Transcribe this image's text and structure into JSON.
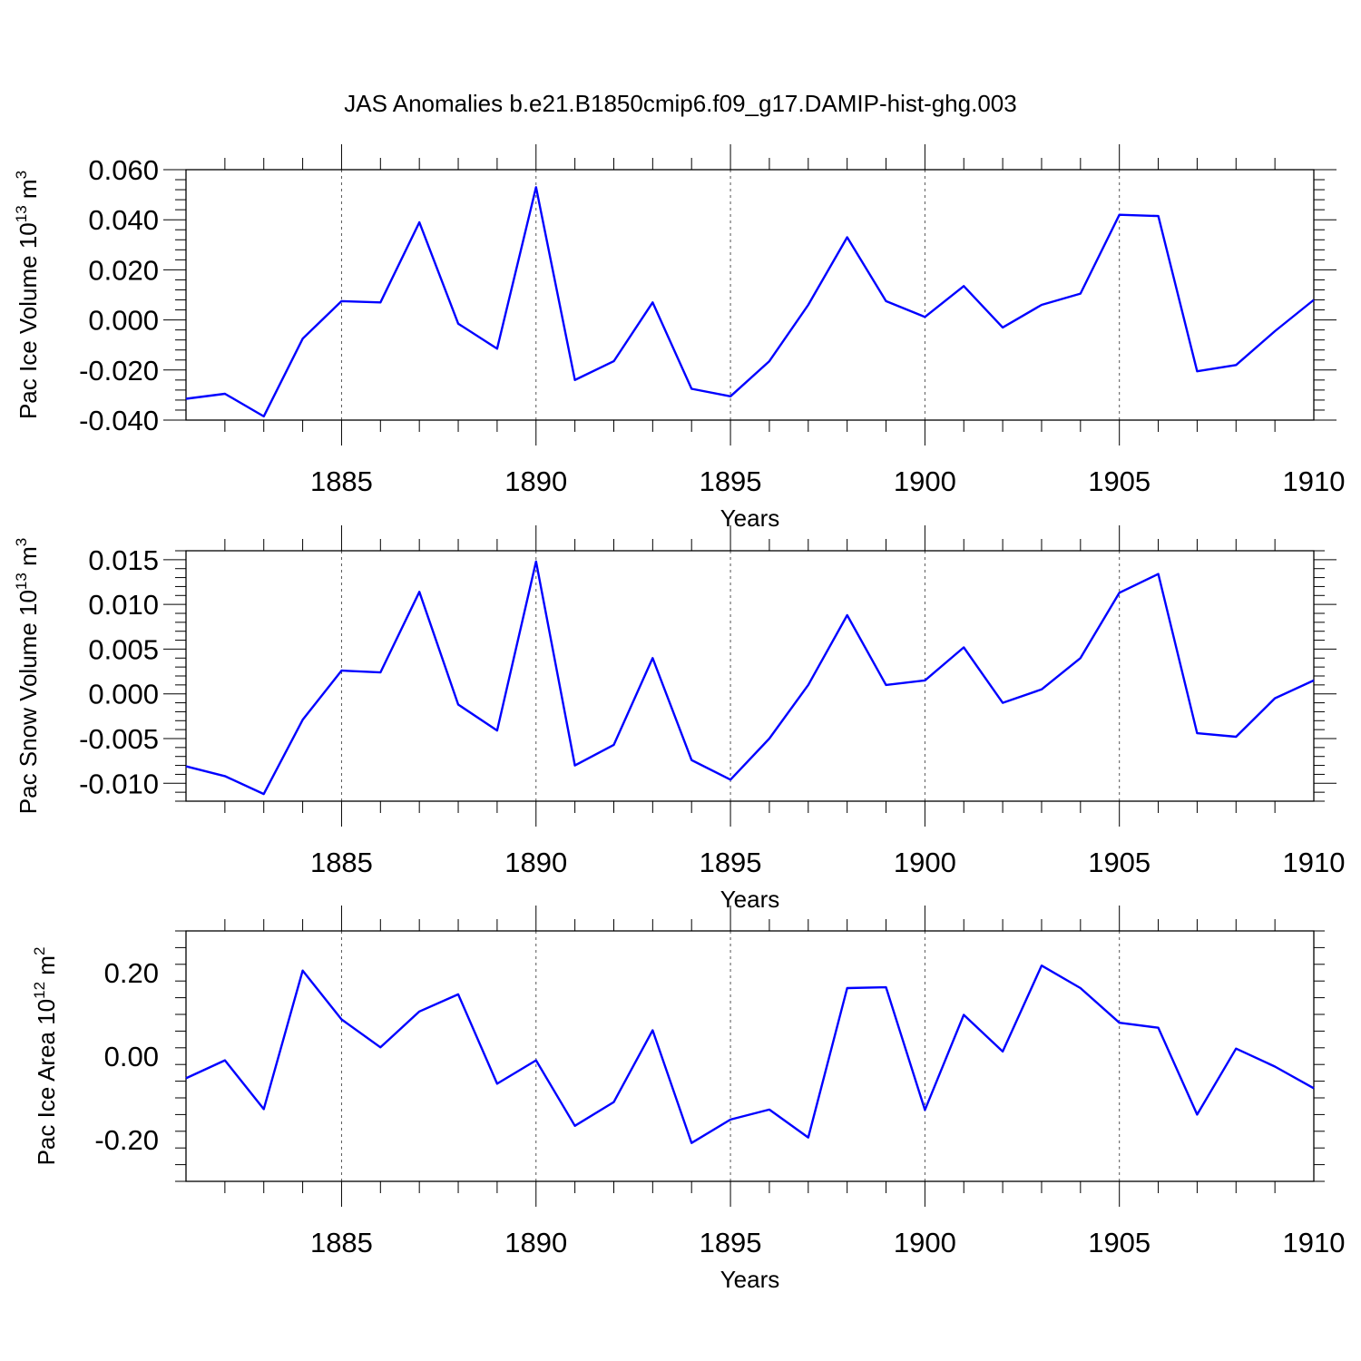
{
  "figure": {
    "title": "JAS Anomalies b.e21.B1850cmip6.f09_g17.DAMIP-hist-ghg.003",
    "line_color": "#0000ff"
  },
  "chart_data": [
    {
      "type": "line",
      "title": "",
      "xlabel": "Years",
      "ylabel_main": "Pac Ice Volume 10",
      "ylabel_sup": "13",
      "ylabel_unit": " m",
      "ylabel_unit_sup": "3",
      "xlim": [
        1881,
        1910
      ],
      "ylim": [
        -0.04,
        0.06
      ],
      "yticks": [
        -0.04,
        -0.02,
        0.0,
        0.02,
        0.04,
        0.06
      ],
      "ytick_labels": [
        "-0.040",
        "-0.020",
        "0.000",
        "0.020",
        "0.040",
        "0.060"
      ],
      "xticks": [
        1885,
        1890,
        1895,
        1900,
        1905,
        1910
      ],
      "xtick_labels": [
        "1885",
        "1890",
        "1895",
        "1900",
        "1905",
        "1910"
      ],
      "grid": "vertical dashed at major x ticks",
      "x": [
        1881,
        1882,
        1883,
        1884,
        1885,
        1886,
        1887,
        1888,
        1889,
        1890,
        1891,
        1892,
        1893,
        1894,
        1895,
        1896,
        1897,
        1898,
        1899,
        1900,
        1901,
        1902,
        1903,
        1904,
        1905,
        1906,
        1907,
        1908,
        1909,
        1910
      ],
      "series": [
        {
          "values": [
            -0.0315,
            -0.0295,
            -0.0385,
            -0.0075,
            0.0075,
            0.007,
            0.039,
            -0.0015,
            -0.0115,
            0.053,
            -0.024,
            -0.0165,
            0.007,
            -0.0275,
            -0.0305,
            -0.0165,
            0.006,
            0.033,
            0.0075,
            0.0012,
            0.0135,
            -0.003,
            0.006,
            0.0105,
            0.042,
            0.0415,
            -0.0205,
            -0.018,
            -0.0045,
            0.008
          ]
        }
      ]
    },
    {
      "type": "line",
      "title": "",
      "xlabel": "Years",
      "ylabel_main": "Pac Snow Volume 10",
      "ylabel_sup": "13",
      "ylabel_unit": " m",
      "ylabel_unit_sup": "3",
      "xlim": [
        1881,
        1910
      ],
      "ylim": [
        -0.012,
        0.016
      ],
      "yticks": [
        -0.01,
        -0.005,
        0.0,
        0.005,
        0.01,
        0.015
      ],
      "ytick_labels": [
        "-0.010",
        "-0.005",
        "0.000",
        "0.005",
        "0.010",
        "0.015"
      ],
      "xticks": [
        1885,
        1890,
        1895,
        1900,
        1905,
        1910
      ],
      "xtick_labels": [
        "1885",
        "1890",
        "1895",
        "1900",
        "1905",
        "1910"
      ],
      "grid": "vertical dashed at major x ticks",
      "x": [
        1881,
        1882,
        1883,
        1884,
        1885,
        1886,
        1887,
        1888,
        1889,
        1890,
        1891,
        1892,
        1893,
        1894,
        1895,
        1896,
        1897,
        1898,
        1899,
        1900,
        1901,
        1902,
        1903,
        1904,
        1905,
        1906,
        1907,
        1908,
        1909,
        1910
      ],
      "series": [
        {
          "values": [
            -0.0081,
            -0.0092,
            -0.0112,
            -0.0029,
            0.0026,
            0.0024,
            0.0114,
            -0.0012,
            -0.0041,
            0.0148,
            -0.008,
            -0.0057,
            0.004,
            -0.0074,
            -0.0096,
            -0.005,
            0.001,
            0.0088,
            0.001,
            0.0015,
            0.0052,
            -0.001,
            0.0005,
            0.004,
            0.0113,
            0.0134,
            -0.0044,
            -0.0048,
            -0.0005,
            0.0015
          ]
        }
      ]
    },
    {
      "type": "line",
      "title": "",
      "xlabel": "Years",
      "ylabel_main": "Pac Ice Area 10",
      "ylabel_sup": "12",
      "ylabel_unit": " m",
      "ylabel_unit_sup": "2",
      "xlim": [
        1881,
        1910
      ],
      "ylim": [
        -0.3,
        0.3
      ],
      "yticks": [
        -0.2,
        0.0,
        0.2
      ],
      "ytick_labels": [
        "-0.20",
        "0.00",
        "0.20"
      ],
      "xticks": [
        1885,
        1890,
        1895,
        1900,
        1905,
        1910
      ],
      "xtick_labels": [
        "1885",
        "1890",
        "1895",
        "1900",
        "1905",
        "1910"
      ],
      "grid": "vertical dashed at major x ticks",
      "x": [
        1881,
        1882,
        1883,
        1884,
        1885,
        1886,
        1887,
        1888,
        1889,
        1890,
        1891,
        1892,
        1893,
        1894,
        1895,
        1896,
        1897,
        1898,
        1899,
        1900,
        1901,
        1902,
        1903,
        1904,
        1905,
        1906,
        1907,
        1908,
        1909,
        1910
      ],
      "series": [
        {
          "values": [
            -0.053,
            -0.01,
            -0.127,
            0.205,
            0.088,
            0.021,
            0.107,
            0.148,
            -0.066,
            -0.01,
            -0.167,
            -0.11,
            0.062,
            -0.208,
            -0.152,
            -0.128,
            -0.195,
            0.163,
            0.165,
            -0.129,
            0.099,
            0.011,
            0.217,
            0.163,
            0.08,
            0.068,
            -0.14,
            0.018,
            -0.025,
            -0.077
          ]
        }
      ]
    }
  ]
}
